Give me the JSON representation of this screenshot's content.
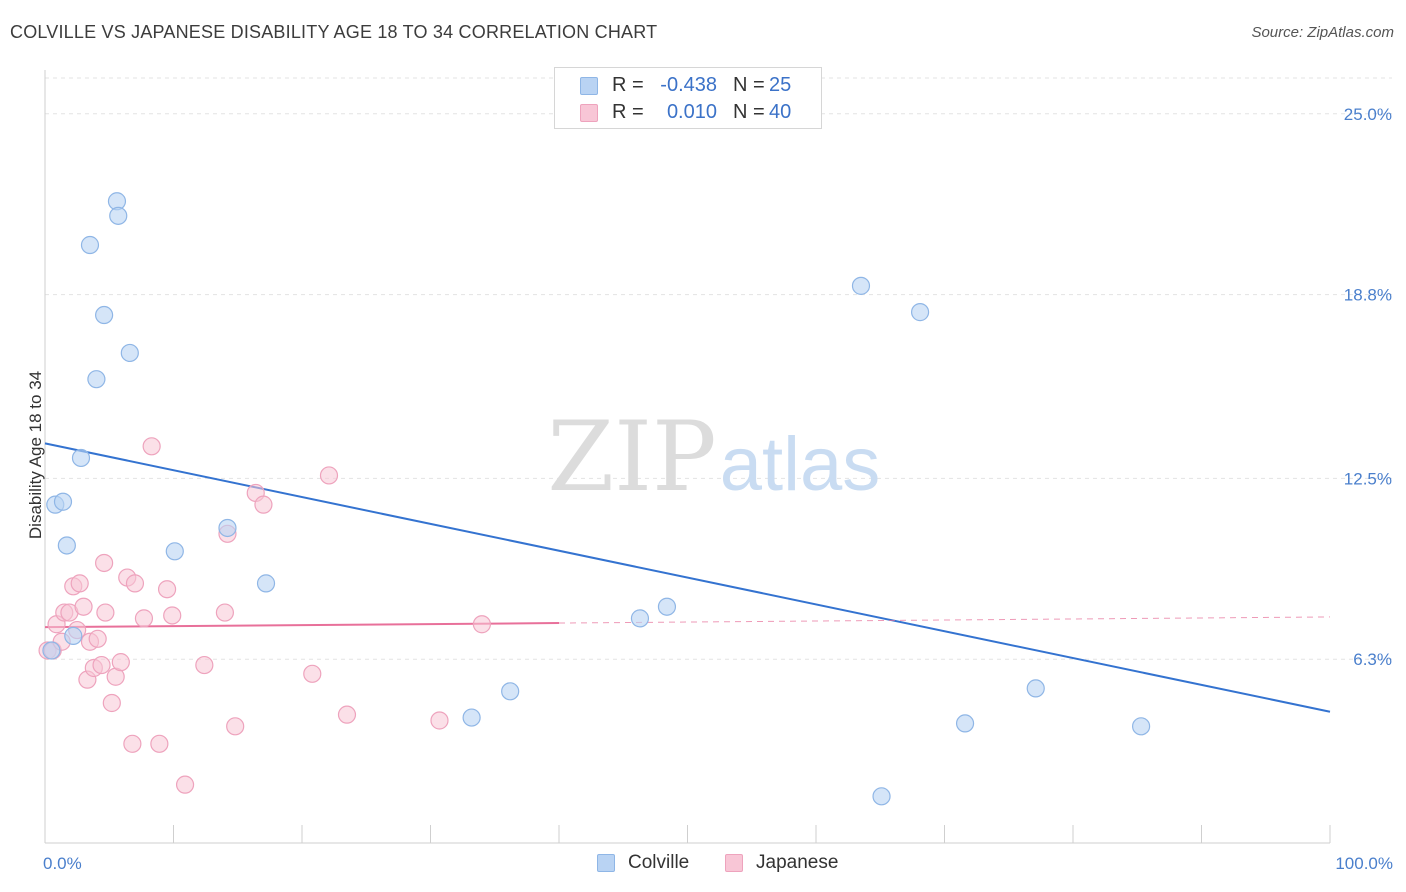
{
  "title": "COLVILLE VS JAPANESE DISABILITY AGE 18 TO 34 CORRELATION CHART",
  "source": "Source: ZipAtlas.com",
  "watermark": {
    "zip": "ZIP",
    "atlas": "atlas"
  },
  "legend_top": [
    {
      "r_label": "R =",
      "r_value": "-0.438",
      "n_label": "N =",
      "n_value": "25"
    },
    {
      "r_label": "R =",
      "r_value": "0.010",
      "n_label": "N =",
      "n_value": "40"
    }
  ],
  "legend_bottom": [
    {
      "label": "Colville"
    },
    {
      "label": "Japanese"
    }
  ],
  "colors": {
    "colville_fill": "#b9d3f3",
    "colville_stroke": "#8fb6e6",
    "colville_line": "#3473d0",
    "japanese_fill": "#f8c6d6",
    "japanese_stroke": "#eea3bd",
    "japanese_line": "#e8709a",
    "tick_label": "#4a7fcc",
    "grid": "#e3e3e3"
  },
  "chart_data": {
    "type": "scatter",
    "title": "COLVILLE VS JAPANESE DISABILITY AGE 18 TO 34 CORRELATION CHART",
    "xlabel": "",
    "ylabel": "Disability Age 18 to 34",
    "xlim": [
      0,
      100
    ],
    "ylim": [
      0,
      26.5
    ],
    "x_tick_labels": [
      "0.0%",
      "100.0%"
    ],
    "y_ticks": [
      6.3,
      12.5,
      18.8,
      25.0
    ],
    "y_tick_labels": [
      "6.3%",
      "12.5%",
      "18.8%",
      "25.0%"
    ],
    "grid": true,
    "legend": "bottom-center",
    "series": [
      {
        "name": "Colville",
        "points": [
          [
            0.5,
            6.6
          ],
          [
            0.8,
            11.6
          ],
          [
            1.4,
            11.7
          ],
          [
            1.7,
            10.2
          ],
          [
            2.2,
            7.1
          ],
          [
            2.8,
            13.2
          ],
          [
            3.5,
            20.5
          ],
          [
            4.0,
            15.9
          ],
          [
            4.6,
            18.1
          ],
          [
            5.6,
            22.0
          ],
          [
            5.7,
            21.5
          ],
          [
            6.6,
            16.8
          ],
          [
            10.1,
            10.0
          ],
          [
            14.2,
            10.8
          ],
          [
            17.2,
            8.9
          ],
          [
            33.2,
            4.3
          ],
          [
            36.2,
            5.2
          ],
          [
            46.3,
            7.7
          ],
          [
            48.4,
            8.1
          ],
          [
            63.5,
            19.1
          ],
          [
            65.1,
            1.6
          ],
          [
            68.1,
            18.2
          ],
          [
            71.6,
            4.1
          ],
          [
            77.1,
            5.3
          ],
          [
            85.3,
            4.0
          ]
        ],
        "trend": {
          "x": [
            0,
            100
          ],
          "y": [
            13.7,
            4.5
          ]
        }
      },
      {
        "name": "Japanese",
        "points": [
          [
            0.2,
            6.6
          ],
          [
            0.6,
            6.6
          ],
          [
            0.9,
            7.5
          ],
          [
            1.3,
            6.9
          ],
          [
            1.5,
            7.9
          ],
          [
            1.9,
            7.9
          ],
          [
            2.2,
            8.8
          ],
          [
            2.5,
            7.3
          ],
          [
            2.7,
            8.9
          ],
          [
            3.0,
            8.1
          ],
          [
            3.3,
            5.6
          ],
          [
            3.5,
            6.9
          ],
          [
            3.8,
            6.0
          ],
          [
            4.1,
            7.0
          ],
          [
            4.4,
            6.1
          ],
          [
            4.6,
            9.6
          ],
          [
            4.7,
            7.9
          ],
          [
            5.2,
            4.8
          ],
          [
            5.5,
            5.7
          ],
          [
            5.9,
            6.2
          ],
          [
            6.4,
            9.1
          ],
          [
            6.8,
            3.4
          ],
          [
            7.0,
            8.9
          ],
          [
            7.7,
            7.7
          ],
          [
            8.3,
            13.6
          ],
          [
            8.9,
            3.4
          ],
          [
            9.5,
            8.7
          ],
          [
            9.9,
            7.8
          ],
          [
            10.9,
            2.0
          ],
          [
            12.4,
            6.1
          ],
          [
            14.0,
            7.9
          ],
          [
            14.2,
            10.6
          ],
          [
            14.8,
            4.0
          ],
          [
            16.4,
            12.0
          ],
          [
            17.0,
            11.6
          ],
          [
            20.8,
            5.8
          ],
          [
            22.1,
            12.6
          ],
          [
            23.5,
            4.4
          ],
          [
            30.7,
            4.2
          ],
          [
            34.0,
            7.5
          ]
        ],
        "trend": {
          "x": [
            0,
            100
          ],
          "y": [
            7.4,
            7.75
          ]
        },
        "trend_solid_to_x": 40
      }
    ]
  }
}
